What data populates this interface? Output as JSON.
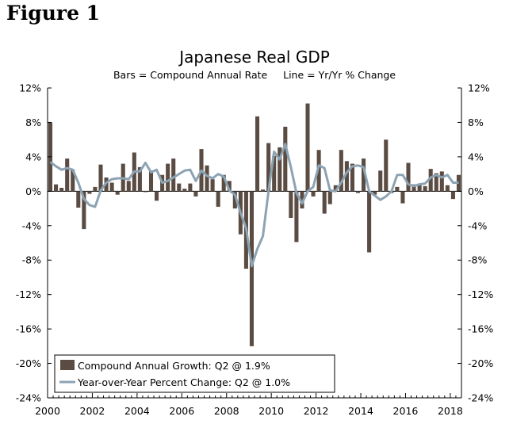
{
  "figure_label": "Figure 1",
  "chart_data": {
    "type": "bar",
    "title": "Japanese Real GDP",
    "subtitle": "Bars = Compound Annual Rate     Line = Yr/Yr % Change",
    "x_tick_labels": [
      "2000",
      "2002",
      "2004",
      "2006",
      "2008",
      "2010",
      "2012",
      "2014",
      "2016",
      "2018"
    ],
    "y_tick_labels_left": [
      "12%",
      "8%",
      "4%",
      "0%",
      "-4%",
      "-8%",
      "-12%",
      "-16%",
      "-20%",
      "-24%"
    ],
    "y_tick_labels_right": [
      "12%",
      "8%",
      "4%",
      "0%",
      "-4%",
      "-8%",
      "-12%",
      "-16%",
      "-20%",
      "-24%"
    ],
    "ylim": [
      -24,
      12
    ],
    "xlim": [
      2000.0,
      2018.5
    ],
    "start_quarter": "2000Q1",
    "colors": {
      "bars": "#5b4c43",
      "line": "#8ca3b3",
      "axis": "#000000"
    },
    "series": [
      {
        "name": "Compound Annual Growth: Q2 @ 1.9%",
        "type": "bar",
        "values": [
          8.0,
          0.8,
          0.4,
          3.8,
          2.5,
          -1.9,
          -4.4,
          -0.3,
          0.5,
          3.1,
          1.6,
          1.0,
          -0.4,
          3.2,
          1.2,
          4.5,
          2.8,
          -0.1,
          2.4,
          -1.1,
          1.9,
          3.2,
          3.8,
          0.9,
          0.3,
          0.9,
          -0.6,
          4.9,
          3.0,
          1.4,
          -1.8,
          1.9,
          1.2,
          -2.0,
          -5.0,
          -9.0,
          -18.0,
          8.7,
          0.2,
          5.6,
          4.1,
          5.1,
          7.5,
          -3.1,
          -5.9,
          -2.0,
          10.2,
          -0.6,
          4.8,
          -2.6,
          -1.5,
          0.7,
          4.8,
          3.5,
          3.2,
          -0.2,
          3.8,
          -7.1,
          -0.4,
          2.4,
          6.0,
          -0.2,
          0.5,
          -1.4,
          3.3,
          0.8,
          0.9,
          0.6,
          2.6,
          2.1,
          2.3,
          0.7,
          -0.9,
          1.9
        ]
      },
      {
        "name": "Year-over-Year Percent Change: Q2 @ 1.0%",
        "type": "line",
        "values": [
          3.4,
          2.9,
          2.5,
          2.7,
          2.5,
          1.0,
          -0.9,
          -1.6,
          -1.8,
          0.1,
          1.0,
          1.4,
          1.5,
          1.5,
          1.4,
          2.3,
          2.3,
          3.3,
          2.2,
          2.5,
          1.0,
          1.2,
          1.6,
          2.0,
          2.4,
          2.5,
          1.2,
          2.4,
          1.8,
          1.5,
          2.0,
          1.7,
          0.1,
          -0.4,
          -2.5,
          -4.3,
          -8.7,
          -6.7,
          -5.2,
          0.0,
          4.6,
          3.7,
          5.5,
          2.8,
          -0.2,
          -1.4,
          0.0,
          0.5,
          3.0,
          2.7,
          0.1,
          0.0,
          1.0,
          2.2,
          2.9,
          3.0,
          2.8,
          0.0,
          -0.5,
          -1.0,
          -0.6,
          0.0,
          1.9,
          1.9,
          0.8,
          0.6,
          0.8,
          0.9,
          1.6,
          1.9,
          1.6,
          1.9,
          1.0,
          1.0
        ]
      }
    ],
    "legend_position": "bottom-left"
  }
}
